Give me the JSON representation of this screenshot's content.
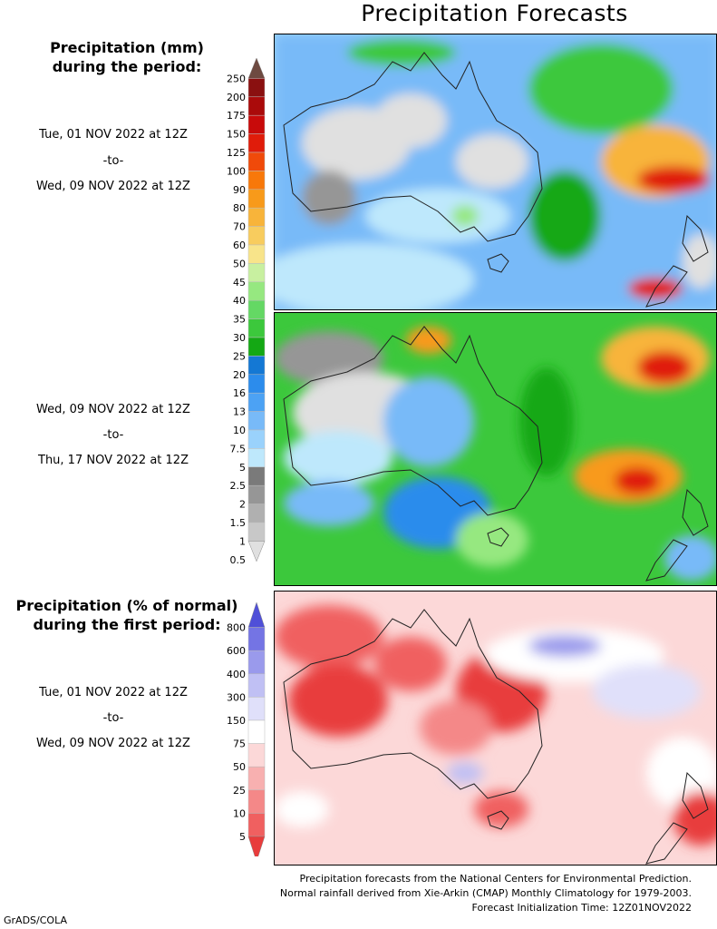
{
  "title": "Precipitation Forecasts",
  "legend_mm": {
    "heading_line1": "Precipitation (mm)",
    "heading_line2": "during the period:",
    "levels": [
      "250",
      "200",
      "175",
      "150",
      "125",
      "100",
      "90",
      "80",
      "70",
      "60",
      "50",
      "45",
      "40",
      "35",
      "30",
      "25",
      "20",
      "16",
      "13",
      "10",
      "7.5",
      "5",
      "2.5",
      "2",
      "1.5",
      "1",
      "0.5"
    ],
    "colors": [
      "#6e4a41",
      "#8a1010",
      "#aa0a0a",
      "#c80a0a",
      "#e01c0a",
      "#f04a0a",
      "#f8780a",
      "#f89a1a",
      "#f8b43a",
      "#f8cc5e",
      "#f8e48a",
      "#c8f0a0",
      "#96e880",
      "#64d864",
      "#3cc83c",
      "#14a814",
      "#1478d4",
      "#2c8cec",
      "#4ca2f4",
      "#78baf8",
      "#9ad2fc",
      "#bee8fc",
      "#7a7a7a",
      "#969696",
      "#b0b0b0",
      "#c8c8c8",
      "#e0e0e0"
    ]
  },
  "legend_pct": {
    "heading_line1": "Precipitation (% of normal)",
    "heading_line2": "during the first period:",
    "levels": [
      "800",
      "600",
      "400",
      "300",
      "150",
      "75",
      "50",
      "25",
      "10",
      "5"
    ],
    "colors": [
      "#5050d8",
      "#7474e4",
      "#9a9aec",
      "#c0c0f4",
      "#e0e0fa",
      "#ffffff",
      "#fcd8d8",
      "#f8b0b0",
      "#f48888",
      "#f06060",
      "#e83c3c"
    ]
  },
  "period1": {
    "start": "Tue, 01 NOV 2022 at 12Z",
    "sep": "-to-",
    "end": "Wed, 09 NOV 2022 at 12Z"
  },
  "period2": {
    "start": "Wed, 09 NOV 2022 at 12Z",
    "sep": "-to-",
    "end": "Thu, 17 NOV 2022 at 12Z"
  },
  "period3": {
    "start": "Tue, 01 NOV 2022 at 12Z",
    "sep": "-to-",
    "end": "Wed, 09 NOV 2022 at 12Z"
  },
  "footer": {
    "line1": "Precipitation forecasts from the National Centers for Environmental Prediction.",
    "line2": "Normal rainfall derived from Xie-Arkin (CMAP) Monthly Climatology for 1979-2003.",
    "line3": "Forecast Initialization Time: 12Z01NOV2022"
  },
  "credit": "GrADS/COLA"
}
